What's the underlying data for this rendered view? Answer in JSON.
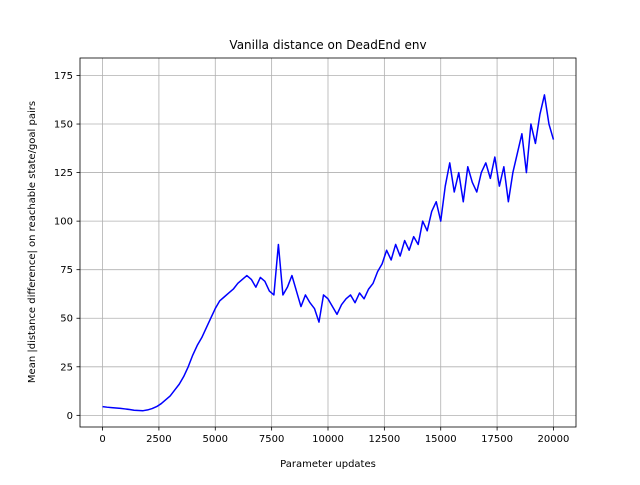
{
  "chart_data": {
    "type": "line",
    "title": "Vanilla distance on DeadEnd env",
    "xlabel": "Parameter updates",
    "ylabel": "Mean |distance difference| on reachable state/goal pairs",
    "xlim": [
      -1000,
      21000
    ],
    "ylim": [
      -6,
      184
    ],
    "xticks": [
      0,
      2500,
      5000,
      7500,
      10000,
      12500,
      15000,
      17500,
      20000
    ],
    "yticks": [
      0,
      25,
      50,
      75,
      100,
      125,
      150,
      175
    ],
    "grid": true,
    "line_color": "#0000ff",
    "series": [
      {
        "x": [
          0,
          200,
          400,
          600,
          800,
          1000,
          1200,
          1400,
          1600,
          1800,
          2000,
          2200,
          2400,
          2600,
          2800,
          3000,
          3200,
          3400,
          3600,
          3800,
          4000,
          4200,
          4400,
          4600,
          4800,
          5000,
          5200,
          5400,
          5600,
          5800,
          6000,
          6200,
          6400,
          6600,
          6800,
          7000,
          7200,
          7400,
          7600,
          7800,
          8000,
          8200,
          8400,
          8600,
          8800,
          9000,
          9200,
          9400,
          9600,
          9800,
          10000,
          10200,
          10400,
          10600,
          10800,
          11000,
          11200,
          11400,
          11600,
          11800,
          12000,
          12200,
          12400,
          12600,
          12800,
          13000,
          13200,
          13400,
          13600,
          13800,
          14000,
          14200,
          14400,
          14600,
          14800,
          15000,
          15200,
          15400,
          15600,
          15800,
          16000,
          16200,
          16400,
          16600,
          16800,
          17000,
          17200,
          17400,
          17600,
          17800,
          18000,
          18200,
          18400,
          18600,
          18800,
          19000,
          19200,
          19400,
          19600,
          19800,
          20000
        ],
        "values": [
          4.5,
          4.2,
          4,
          3.8,
          3.6,
          3.3,
          3,
          2.6,
          2.5,
          2.4,
          2.8,
          3.5,
          4.5,
          6,
          8,
          10,
          13,
          16,
          20,
          25,
          31,
          36,
          40,
          45,
          50,
          55,
          59,
          61,
          63,
          65,
          68,
          70,
          72,
          70,
          66,
          71,
          69,
          64,
          62,
          88,
          62,
          66,
          72,
          64,
          56,
          62,
          58,
          55,
          48,
          62,
          60,
          56,
          52,
          57,
          60,
          62,
          58,
          63,
          60,
          65,
          68,
          74,
          78,
          85,
          80,
          88,
          82,
          90,
          85,
          92,
          88,
          100,
          95,
          105,
          110,
          100,
          118,
          130,
          115,
          125,
          110,
          128,
          120,
          115,
          125,
          130,
          122,
          133,
          118,
          128,
          110,
          125,
          135,
          145,
          125,
          150,
          140,
          155,
          165,
          150,
          142
        ]
      }
    ]
  }
}
